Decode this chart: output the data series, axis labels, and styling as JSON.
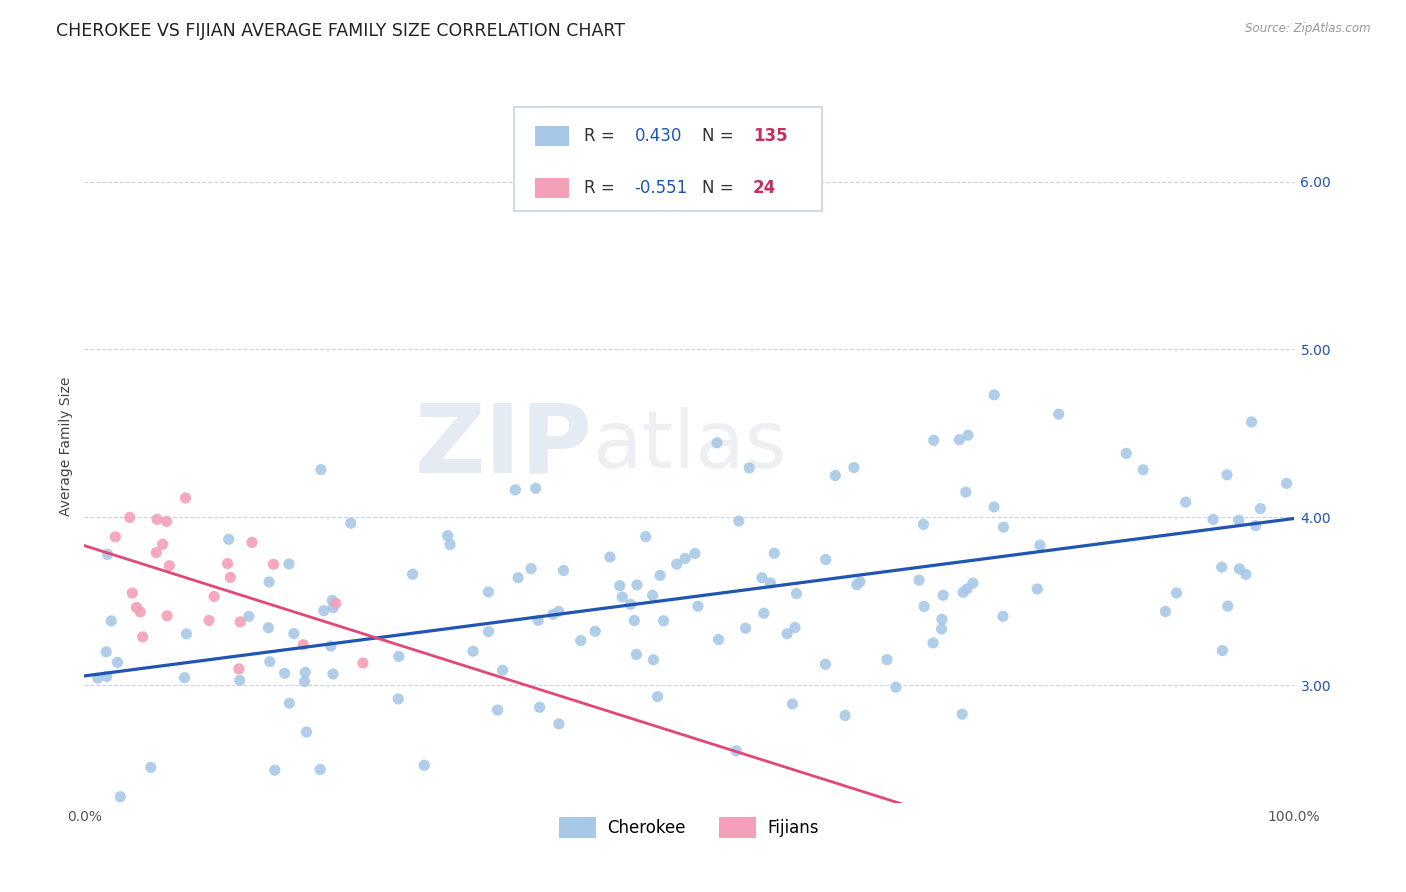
{
  "title": "CHEROKEE VS FIJIAN AVERAGE FAMILY SIZE CORRELATION CHART",
  "source": "Source: ZipAtlas.com",
  "ylabel": "Average Family Size",
  "yticks": [
    3.0,
    4.0,
    5.0,
    6.0
  ],
  "xlim": [
    0.0,
    1.0
  ],
  "ylim": [
    2.3,
    6.55
  ],
  "watermark_zip": "ZIP",
  "watermark_atlas": "atlas",
  "cherokee_color": "#a8c8e8",
  "fijian_color": "#f4a0b8",
  "trend_cherokee_color": "#2055b0",
  "trend_fijian_color": "#e04878",
  "background_color": "#ffffff",
  "grid_color": "#c8d4e4",
  "title_fontsize": 12.5,
  "axis_label_fontsize": 10,
  "tick_fontsize": 10,
  "legend_fontsize": 12,
  "r_color": "#2055b0",
  "n_color": "#c03060",
  "cherokee_R": 0.43,
  "fijian_R": -0.551,
  "cherokee_N": 135,
  "fijian_N": 24
}
